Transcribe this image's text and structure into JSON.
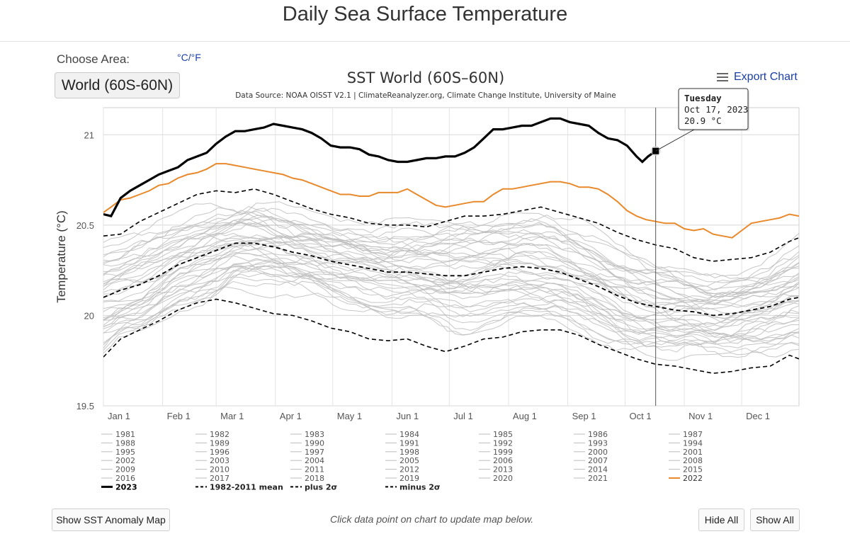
{
  "page": {
    "title": "Daily Sea Surface Temperature",
    "choose_label": "Choose Area:",
    "units_toggle": "°C/°F",
    "area_button": "World (60S-60N)",
    "export_label": "Export Chart",
    "hint_text": "Click data point on chart to update map below.",
    "anomaly_button": "Show SST Anomaly Map",
    "hide_all_button": "Hide All",
    "show_all_button": "Show All"
  },
  "chart_data": {
    "type": "line",
    "title": "SST World (60S–60N)",
    "subtitle": "Data Source: NOAA OISST V2.1 | ClimateReanalyzer.org, Climate Change Institute, University of Maine",
    "ylabel": "Temperature (°C)",
    "xlabel": "",
    "ylim": [
      19.5,
      21.15
    ],
    "yticks": [
      19.5,
      20,
      20.5,
      21
    ],
    "xlim": [
      1,
      365
    ],
    "xticks": [
      {
        "label": "Jan 1",
        "day": 1
      },
      {
        "label": "Feb 1",
        "day": 32
      },
      {
        "label": "Mar 1",
        "day": 60
      },
      {
        "label": "Apr 1",
        "day": 91
      },
      {
        "label": "May 1",
        "day": 121
      },
      {
        "label": "Jun 1",
        "day": 152
      },
      {
        "label": "Jul 1",
        "day": 182
      },
      {
        "label": "Aug 1",
        "day": 213
      },
      {
        "label": "Sep 1",
        "day": 244
      },
      {
        "label": "Oct 1",
        "day": 274
      },
      {
        "label": "Nov 1",
        "day": 305
      },
      {
        "label": "Dec 1",
        "day": 335
      }
    ],
    "grid": true,
    "legend_position": "bottom",
    "colors": {
      "2023": "#000000",
      "2022": "#e8892b",
      "other_years": "#bdbdbd",
      "reference": "#000000"
    },
    "tooltip": {
      "line1": "Tuesday",
      "line2": "Oct 17, 2023",
      "line3": "20.9 °C",
      "day": 290,
      "value": 20.91
    },
    "series_2023": {
      "name": "2023",
      "points": [
        [
          1,
          20.56
        ],
        [
          5,
          20.55
        ],
        [
          10,
          20.65
        ],
        [
          15,
          20.69
        ],
        [
          20,
          20.72
        ],
        [
          25,
          20.75
        ],
        [
          30,
          20.78
        ],
        [
          35,
          20.8
        ],
        [
          40,
          20.82
        ],
        [
          45,
          20.86
        ],
        [
          50,
          20.88
        ],
        [
          55,
          20.9
        ],
        [
          60,
          20.95
        ],
        [
          65,
          20.99
        ],
        [
          70,
          21.02
        ],
        [
          75,
          21.02
        ],
        [
          80,
          21.03
        ],
        [
          85,
          21.04
        ],
        [
          90,
          21.06
        ],
        [
          95,
          21.05
        ],
        [
          100,
          21.04
        ],
        [
          105,
          21.03
        ],
        [
          110,
          21.01
        ],
        [
          115,
          20.98
        ],
        [
          120,
          20.94
        ],
        [
          125,
          20.93
        ],
        [
          130,
          20.93
        ],
        [
          135,
          20.92
        ],
        [
          140,
          20.89
        ],
        [
          145,
          20.88
        ],
        [
          150,
          20.86
        ],
        [
          155,
          20.85
        ],
        [
          160,
          20.85
        ],
        [
          165,
          20.86
        ],
        [
          170,
          20.87
        ],
        [
          175,
          20.87
        ],
        [
          180,
          20.88
        ],
        [
          185,
          20.88
        ],
        [
          190,
          20.9
        ],
        [
          195,
          20.93
        ],
        [
          200,
          20.98
        ],
        [
          205,
          21.03
        ],
        [
          210,
          21.03
        ],
        [
          215,
          21.04
        ],
        [
          220,
          21.05
        ],
        [
          225,
          21.05
        ],
        [
          230,
          21.07
        ],
        [
          235,
          21.09
        ],
        [
          240,
          21.09
        ],
        [
          245,
          21.07
        ],
        [
          250,
          21.06
        ],
        [
          255,
          21.05
        ],
        [
          260,
          21.01
        ],
        [
          265,
          20.98
        ],
        [
          270,
          20.97
        ],
        [
          275,
          20.94
        ],
        [
          280,
          20.88
        ],
        [
          283,
          20.85
        ],
        [
          286,
          20.88
        ],
        [
          290,
          20.91
        ]
      ]
    },
    "series_2022": {
      "name": "2022",
      "points": [
        [
          1,
          20.57
        ],
        [
          5,
          20.6
        ],
        [
          10,
          20.64
        ],
        [
          15,
          20.65
        ],
        [
          20,
          20.67
        ],
        [
          25,
          20.69
        ],
        [
          30,
          20.72
        ],
        [
          35,
          20.73
        ],
        [
          40,
          20.76
        ],
        [
          45,
          20.78
        ],
        [
          50,
          20.79
        ],
        [
          55,
          20.81
        ],
        [
          60,
          20.84
        ],
        [
          65,
          20.84
        ],
        [
          70,
          20.83
        ],
        [
          75,
          20.82
        ],
        [
          80,
          20.81
        ],
        [
          85,
          20.8
        ],
        [
          90,
          20.79
        ],
        [
          95,
          20.78
        ],
        [
          100,
          20.76
        ],
        [
          105,
          20.75
        ],
        [
          110,
          20.73
        ],
        [
          115,
          20.71
        ],
        [
          120,
          20.69
        ],
        [
          125,
          20.67
        ],
        [
          130,
          20.67
        ],
        [
          135,
          20.66
        ],
        [
          140,
          20.66
        ],
        [
          145,
          20.68
        ],
        [
          150,
          20.68
        ],
        [
          155,
          20.68
        ],
        [
          160,
          20.7
        ],
        [
          165,
          20.67
        ],
        [
          170,
          20.64
        ],
        [
          175,
          20.61
        ],
        [
          180,
          20.6
        ],
        [
          185,
          20.61
        ],
        [
          190,
          20.62
        ],
        [
          195,
          20.63
        ],
        [
          200,
          20.63
        ],
        [
          205,
          20.67
        ],
        [
          210,
          20.7
        ],
        [
          215,
          20.7
        ],
        [
          220,
          20.71
        ],
        [
          225,
          20.72
        ],
        [
          230,
          20.73
        ],
        [
          235,
          20.74
        ],
        [
          240,
          20.74
        ],
        [
          245,
          20.73
        ],
        [
          250,
          20.71
        ],
        [
          255,
          20.71
        ],
        [
          260,
          20.7
        ],
        [
          265,
          20.67
        ],
        [
          270,
          20.63
        ],
        [
          275,
          20.58
        ],
        [
          280,
          20.55
        ],
        [
          285,
          20.53
        ],
        [
          290,
          20.52
        ],
        [
          295,
          20.51
        ],
        [
          300,
          20.51
        ],
        [
          305,
          20.48
        ],
        [
          310,
          20.47
        ],
        [
          315,
          20.48
        ],
        [
          320,
          20.45
        ],
        [
          325,
          20.44
        ],
        [
          330,
          20.43
        ],
        [
          335,
          20.47
        ],
        [
          340,
          20.51
        ],
        [
          345,
          20.52
        ],
        [
          350,
          20.53
        ],
        [
          355,
          20.54
        ],
        [
          360,
          20.56
        ],
        [
          365,
          20.55
        ]
      ]
    },
    "series_mean": {
      "name": "1982-2011 mean",
      "points": [
        [
          1,
          20.1
        ],
        [
          10,
          20.14
        ],
        [
          20,
          20.17
        ],
        [
          30,
          20.22
        ],
        [
          40,
          20.28
        ],
        [
          50,
          20.32
        ],
        [
          60,
          20.36
        ],
        [
          70,
          20.4
        ],
        [
          80,
          20.4
        ],
        [
          90,
          20.38
        ],
        [
          100,
          20.35
        ],
        [
          110,
          20.33
        ],
        [
          120,
          20.3
        ],
        [
          130,
          20.28
        ],
        [
          140,
          20.26
        ],
        [
          150,
          20.24
        ],
        [
          160,
          20.24
        ],
        [
          170,
          20.23
        ],
        [
          180,
          20.22
        ],
        [
          190,
          20.22
        ],
        [
          200,
          20.24
        ],
        [
          210,
          20.26
        ],
        [
          220,
          20.27
        ],
        [
          230,
          20.26
        ],
        [
          240,
          20.24
        ],
        [
          250,
          20.2
        ],
        [
          260,
          20.16
        ],
        [
          270,
          20.11
        ],
        [
          280,
          20.07
        ],
        [
          290,
          20.05
        ],
        [
          300,
          20.03
        ],
        [
          310,
          20.02
        ],
        [
          320,
          20.0
        ],
        [
          330,
          20.01
        ],
        [
          340,
          20.03
        ],
        [
          350,
          20.05
        ],
        [
          360,
          20.09
        ],
        [
          365,
          20.1
        ]
      ]
    },
    "series_plus2": {
      "name": "plus 2σ",
      "points": [
        [
          1,
          20.44
        ],
        [
          10,
          20.45
        ],
        [
          20,
          20.52
        ],
        [
          30,
          20.57
        ],
        [
          40,
          20.62
        ],
        [
          50,
          20.67
        ],
        [
          60,
          20.69
        ],
        [
          70,
          20.68
        ],
        [
          80,
          20.7
        ],
        [
          90,
          20.67
        ],
        [
          100,
          20.63
        ],
        [
          110,
          20.59
        ],
        [
          120,
          20.56
        ],
        [
          130,
          20.54
        ],
        [
          140,
          20.51
        ],
        [
          150,
          20.5
        ],
        [
          160,
          20.5
        ],
        [
          170,
          20.49
        ],
        [
          180,
          20.52
        ],
        [
          190,
          20.55
        ],
        [
          200,
          20.55
        ],
        [
          210,
          20.56
        ],
        [
          220,
          20.58
        ],
        [
          230,
          20.6
        ],
        [
          240,
          20.57
        ],
        [
          250,
          20.54
        ],
        [
          260,
          20.51
        ],
        [
          270,
          20.46
        ],
        [
          280,
          20.42
        ],
        [
          290,
          20.39
        ],
        [
          300,
          20.37
        ],
        [
          310,
          20.32
        ],
        [
          320,
          20.3
        ],
        [
          330,
          20.31
        ],
        [
          340,
          20.32
        ],
        [
          350,
          20.35
        ],
        [
          360,
          20.41
        ],
        [
          365,
          20.43
        ]
      ]
    },
    "series_minus2": {
      "name": "minus 2σ",
      "points": [
        [
          1,
          19.77
        ],
        [
          10,
          19.87
        ],
        [
          20,
          19.92
        ],
        [
          30,
          19.97
        ],
        [
          40,
          20.03
        ],
        [
          50,
          20.07
        ],
        [
          60,
          20.09
        ],
        [
          70,
          20.07
        ],
        [
          80,
          20.04
        ],
        [
          90,
          20.01
        ],
        [
          100,
          20.0
        ],
        [
          110,
          19.97
        ],
        [
          120,
          19.93
        ],
        [
          130,
          19.91
        ],
        [
          140,
          19.87
        ],
        [
          150,
          19.86
        ],
        [
          160,
          19.87
        ],
        [
          170,
          19.83
        ],
        [
          180,
          19.8
        ],
        [
          190,
          19.83
        ],
        [
          200,
          19.87
        ],
        [
          210,
          19.88
        ],
        [
          220,
          19.91
        ],
        [
          230,
          19.92
        ],
        [
          240,
          19.92
        ],
        [
          250,
          19.89
        ],
        [
          260,
          19.84
        ],
        [
          270,
          19.8
        ],
        [
          280,
          19.76
        ],
        [
          290,
          19.73
        ],
        [
          300,
          19.72
        ],
        [
          310,
          19.7
        ],
        [
          320,
          19.68
        ],
        [
          330,
          19.69
        ],
        [
          340,
          19.71
        ],
        [
          350,
          19.72
        ],
        [
          360,
          19.78
        ],
        [
          365,
          19.76
        ]
      ]
    },
    "legend": {
      "columns": [
        [
          "1981",
          "1988",
          "1995",
          "2002",
          "2009",
          "2016",
          "2023"
        ],
        [
          "1982",
          "1989",
          "1996",
          "2003",
          "2010",
          "2017",
          "1982-2011 mean"
        ],
        [
          "1983",
          "1990",
          "1997",
          "2004",
          "2011",
          "2018",
          "plus 2σ"
        ],
        [
          "1984",
          "1991",
          "1998",
          "2005",
          "2012",
          "2019",
          "minus 2σ"
        ],
        [
          "1985",
          "1992",
          "1999",
          "2006",
          "2013",
          "2020"
        ],
        [
          "1986",
          "1993",
          "2000",
          "2007",
          "2014",
          "2021"
        ],
        [
          "1987",
          "1994",
          "2001",
          "2008",
          "2015",
          "2022"
        ]
      ]
    }
  }
}
